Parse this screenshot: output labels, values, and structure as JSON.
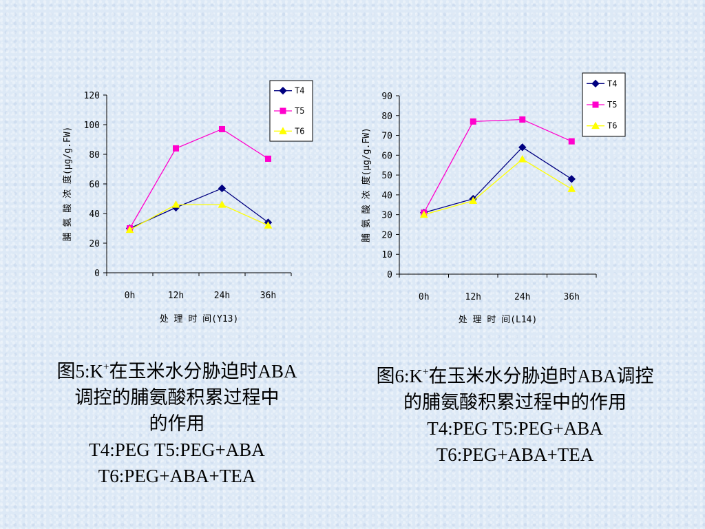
{
  "chart_data": [
    {
      "type": "line",
      "categories": [
        "0h",
        "12h",
        "24h",
        "36h"
      ],
      "series": [
        {
          "name": "T4",
          "values": [
            30,
            44,
            57,
            34
          ],
          "color": "#000080",
          "marker": "diamond"
        },
        {
          "name": "T5",
          "values": [
            30,
            84,
            97,
            77
          ],
          "color": "#ff00cc",
          "marker": "square"
        },
        {
          "name": "T6",
          "values": [
            29,
            46,
            46,
            32
          ],
          "color": "#ffff00",
          "marker": "triangle"
        }
      ],
      "xlabel": "处 理 时 间(Y13)",
      "ylabel": "脯 氨 酸 浓 度(μg/g.FW)",
      "ylim": [
        0,
        120
      ],
      "yticks": [
        0,
        20,
        40,
        60,
        80,
        100,
        120
      ],
      "legend": "top-right",
      "grid": false
    },
    {
      "type": "line",
      "categories": [
        "0h",
        "12h",
        "24h",
        "36h"
      ],
      "series": [
        {
          "name": "T4",
          "values": [
            31,
            38,
            64,
            48
          ],
          "color": "#000080",
          "marker": "diamond"
        },
        {
          "name": "T5",
          "values": [
            31,
            77,
            78,
            67
          ],
          "color": "#ff00cc",
          "marker": "square"
        },
        {
          "name": "T6",
          "values": [
            30,
            37,
            58,
            43
          ],
          "color": "#ffff00",
          "marker": "triangle"
        }
      ],
      "xlabel": "处 理 时 间(L14)",
      "ylabel": "脯 氨 酸 浓 度(μg/g.FW)",
      "ylim": [
        0,
        90
      ],
      "yticks": [
        0,
        10,
        20,
        30,
        40,
        50,
        60,
        70,
        80,
        90
      ],
      "legend": "top-right",
      "grid": false
    }
  ],
  "captions": [
    {
      "fig_prefix": "图5:K",
      "sup": "+",
      "rest": "在玉米水分胁迫时ABA",
      "line2": "调控的脯氨酸积累过程中",
      "line3": "的作用",
      "line4": "T4:PEG  T5:PEG+ABA",
      "line5": "T6:PEG+ABA+TEA"
    },
    {
      "fig_prefix": "图6:K",
      "sup": "+",
      "rest": "在玉米水分胁迫时ABA调控",
      "line2": "的脯氨酸积累过程中的作用",
      "line3": "T4:PEG  T5:PEG+ABA",
      "line4": "T6:PEG+ABA+TEA"
    }
  ]
}
